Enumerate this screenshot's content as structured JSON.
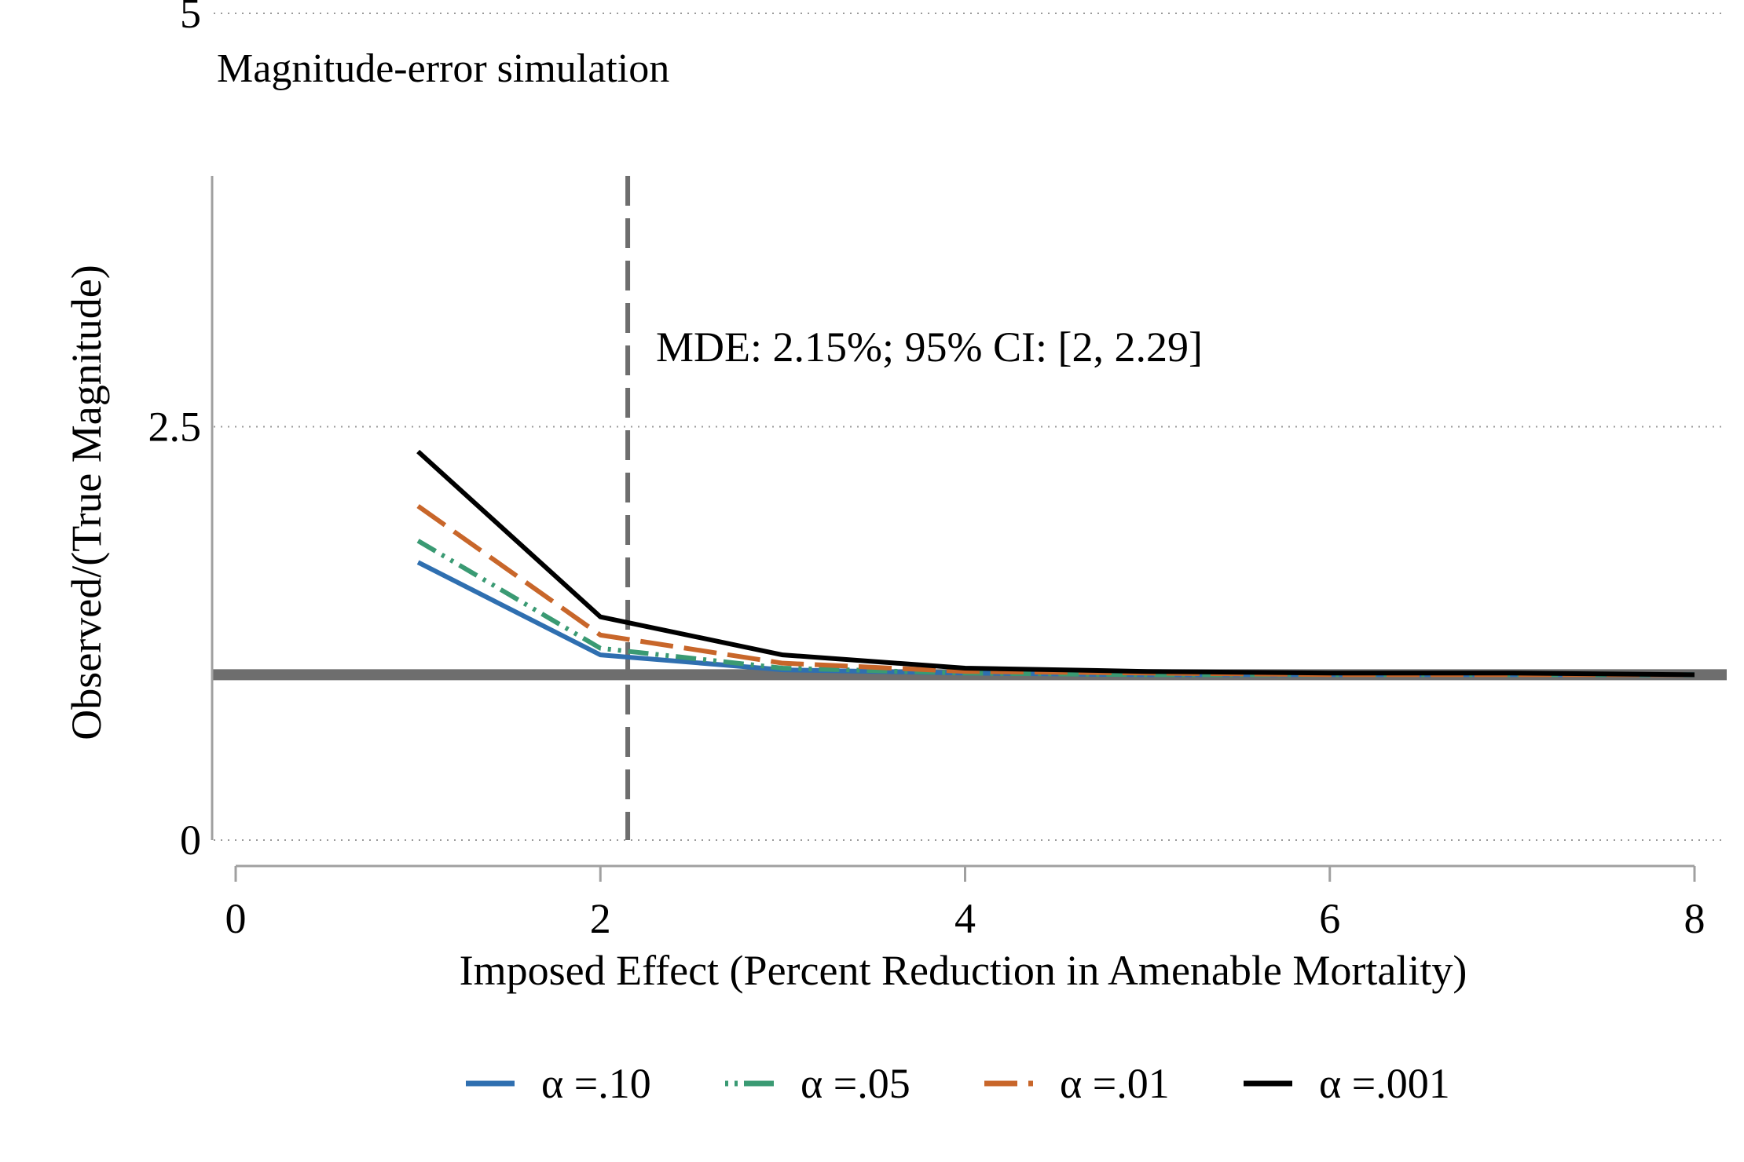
{
  "chart_data": {
    "type": "line",
    "subtitle": "Magnitude-error simulation",
    "xlabel": "Imposed Effect (Percent Reduction in Amenable Mortality)",
    "ylabel": "Observed/(True Magnitude)",
    "xlim": [
      0,
      8
    ],
    "ylim": [
      0,
      5
    ],
    "x_ticks": [
      "0",
      "2",
      "4",
      "6",
      "8"
    ],
    "y_ticks": [
      "0",
      "2.5",
      "5"
    ],
    "grid": "horizontal dotted",
    "legend_position": "bottom",
    "reference_hline": 1,
    "reference_vline": 2.15,
    "annotation": "MDE: 2.15%; 95% CI: [2, 2.29]",
    "x": [
      1,
      2,
      3,
      4,
      5,
      6,
      7,
      8
    ],
    "series": [
      {
        "name": "α =.10",
        "color": "#2f6fb0",
        "dash": "solid",
        "values": [
          1.68,
          1.12,
          1.03,
          1.01,
          1.0,
          1.0,
          1.0,
          1.0
        ]
      },
      {
        "name": "α =.05",
        "color": "#3a9a73",
        "dash": "dashdot",
        "values": [
          1.81,
          1.16,
          1.04,
          1.01,
          1.0,
          1.0,
          1.0,
          1.0
        ]
      },
      {
        "name": "α =.01",
        "color": "#c8662a",
        "dash": "dashed",
        "values": [
          2.02,
          1.24,
          1.07,
          1.02,
          1.01,
          1.0,
          1.0,
          1.0
        ]
      },
      {
        "name": "α =.001",
        "color": "#000000",
        "dash": "solid",
        "values": [
          2.35,
          1.35,
          1.12,
          1.04,
          1.02,
          1.01,
          1.01,
          1.0
        ]
      }
    ]
  }
}
